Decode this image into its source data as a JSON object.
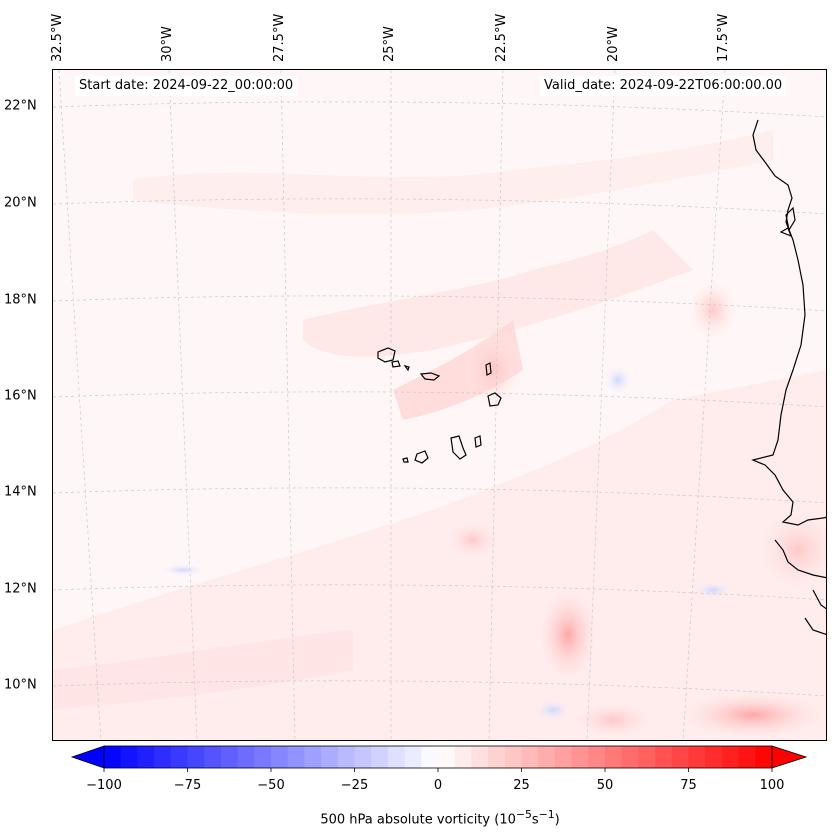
{
  "header": {
    "start_date": "Start date: 2024-09-22_00:00:00",
    "valid_date": "Valid_date: 2024-09-22T06:00:00.00"
  },
  "map": {
    "longitude_labels": [
      "32.5°W",
      "30°W",
      "27.5°W",
      "25°W",
      "22.5°W",
      "20°W",
      "17.5°W"
    ],
    "latitude_labels": [
      "22°N",
      "20°N",
      "18°N",
      "16°N",
      "14°N",
      "12°N",
      "10°N"
    ],
    "land_outline_color": "#000000",
    "grid_style": "dashed light gray"
  },
  "colorbar": {
    "label": "500 hPa absolute vorticity",
    "unit_exp1": "−5",
    "unit_exp2": "−1",
    "min": -100,
    "max": 100,
    "tick_values": [
      -100,
      -75,
      -50,
      -25,
      0,
      25,
      50,
      75,
      100
    ],
    "tick_labels": [
      "−100",
      "−75",
      "−50",
      "−25",
      "0",
      "25",
      "50",
      "75",
      "100"
    ],
    "colormap": "bwr",
    "extend": "both",
    "color_min": "#0000ff",
    "color_mid": "#ffffff",
    "color_max": "#ff0000"
  }
}
